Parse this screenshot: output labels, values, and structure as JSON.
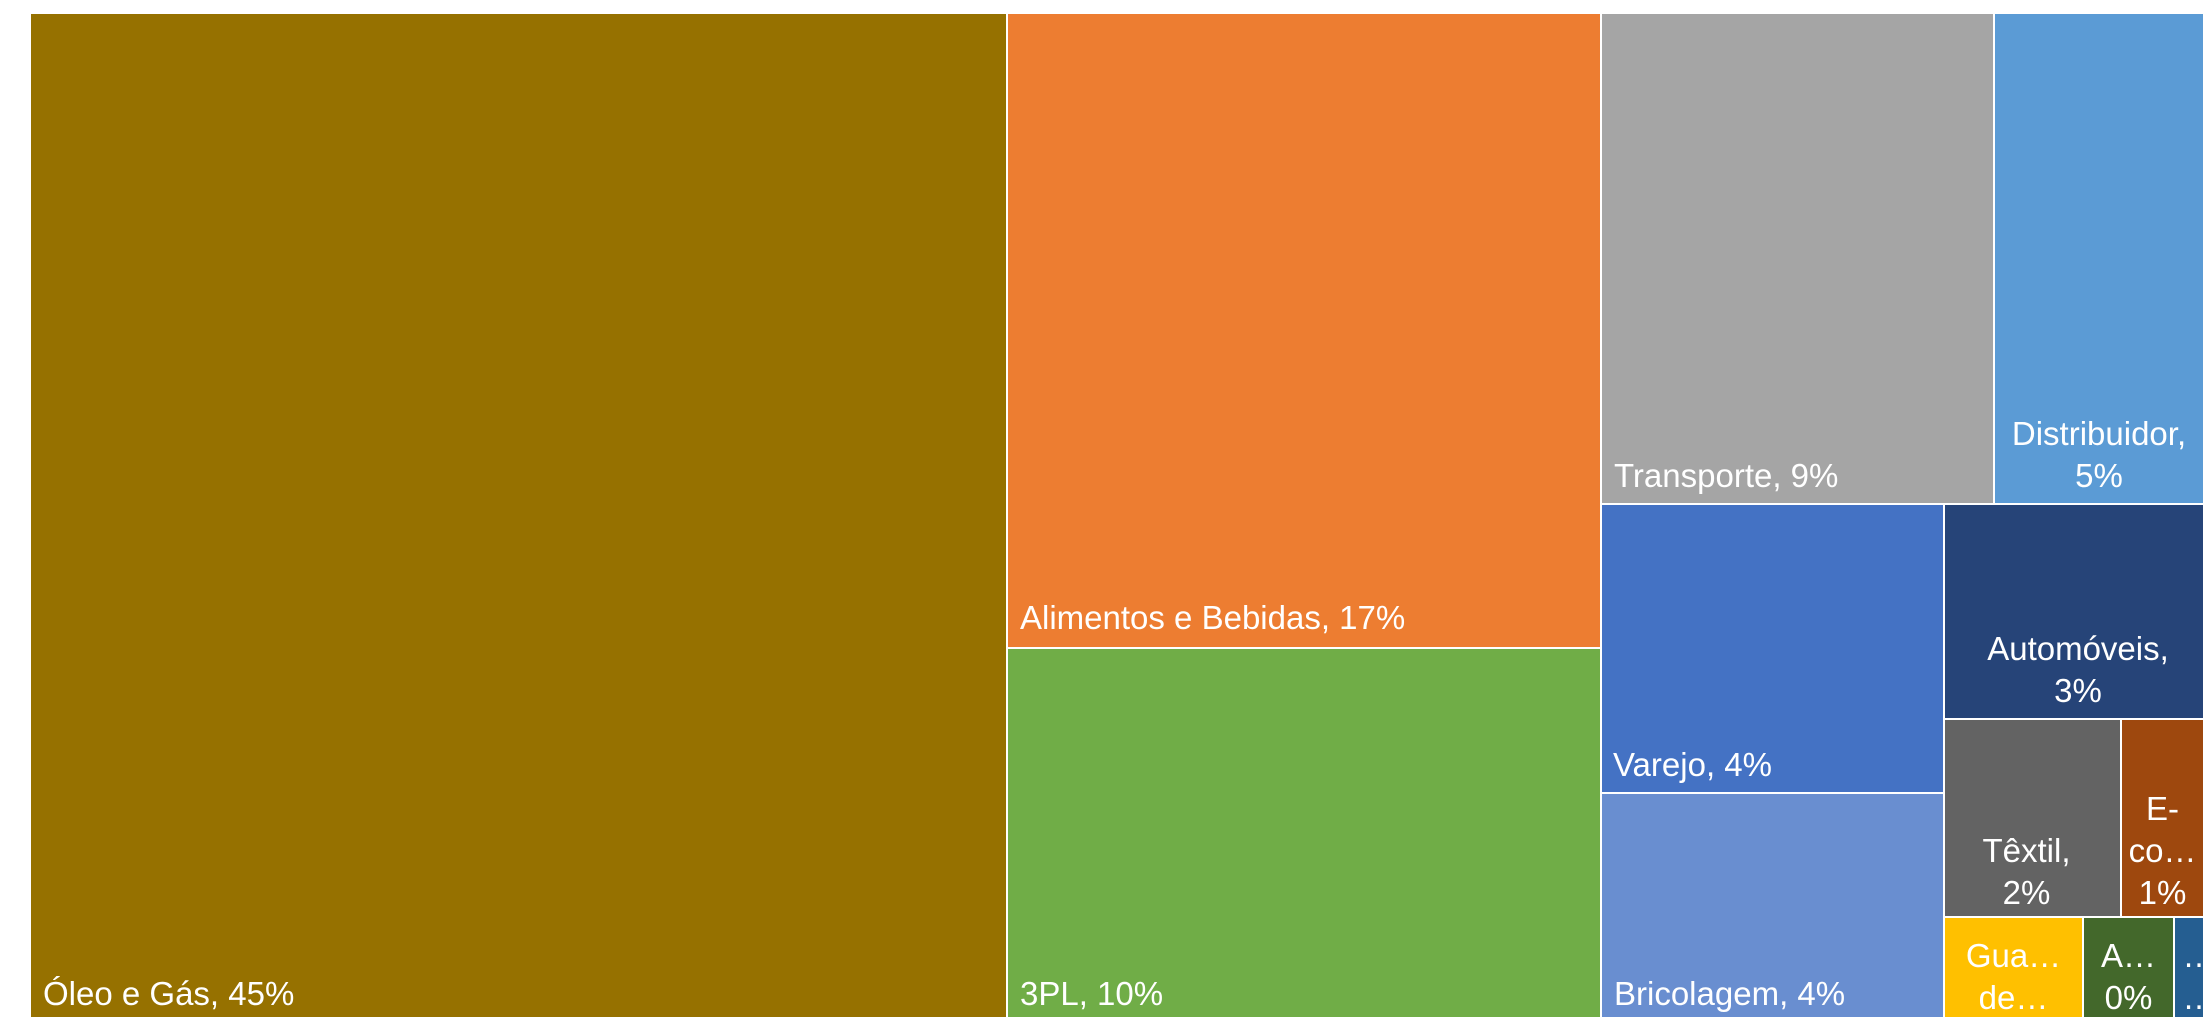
{
  "chart_data": {
    "type": "treemap",
    "items": [
      {
        "label": "Óleo e Gás",
        "value_label": "45%",
        "value": 45,
        "color": "#967100",
        "display": "Óleo e Gás, 45%"
      },
      {
        "label": "Alimentos e Bebidas",
        "value_label": "17%",
        "value": 17,
        "color": "#ED7D31",
        "display": "Alimentos e Bebidas, 17%"
      },
      {
        "label": "3PL",
        "value_label": "10%",
        "value": 10,
        "color": "#70AD47",
        "display": "3PL, 10%"
      },
      {
        "label": "Transporte",
        "value_label": "9%",
        "value": 9,
        "color": "#A5A5A5",
        "display": "Transporte, 9%"
      },
      {
        "label": "Distribuidor",
        "value_label": "5%",
        "value": 5,
        "color": "#5B9BD5",
        "display": "Distribuidor,\n5%"
      },
      {
        "label": "Varejo",
        "value_label": "4%",
        "value": 4,
        "color": "#4472C4",
        "display": "Varejo, 4%"
      },
      {
        "label": "Bricolagem",
        "value_label": "4%",
        "value": 4,
        "color": "#698ED0",
        "display": "Bricolagem, 4%"
      },
      {
        "label": "Automóveis",
        "value_label": "3%",
        "value": 3,
        "color": "#264478",
        "display": "Automóveis,\n3%"
      },
      {
        "label": "Têxtil",
        "value_label": "2%",
        "value": 2,
        "color": "#636363",
        "display": "Têxtil,\n2%"
      },
      {
        "label": "E-co…",
        "value_label": "1%",
        "value": 1,
        "color": "#9E480E",
        "display": "E-\nco…\n1%"
      },
      {
        "label": "Gua… de…",
        "value_label": "",
        "value": 0.5,
        "color": "#FFC000",
        "display": "Gua…\nde…"
      },
      {
        "label": "A…",
        "value_label": "0%",
        "value": 0.3,
        "color": "#43682B",
        "display": "A…\n0%"
      },
      {
        "label": "…",
        "value_label": "",
        "value": 0.2,
        "color": "#255E91",
        "display": "…\n…"
      }
    ]
  }
}
